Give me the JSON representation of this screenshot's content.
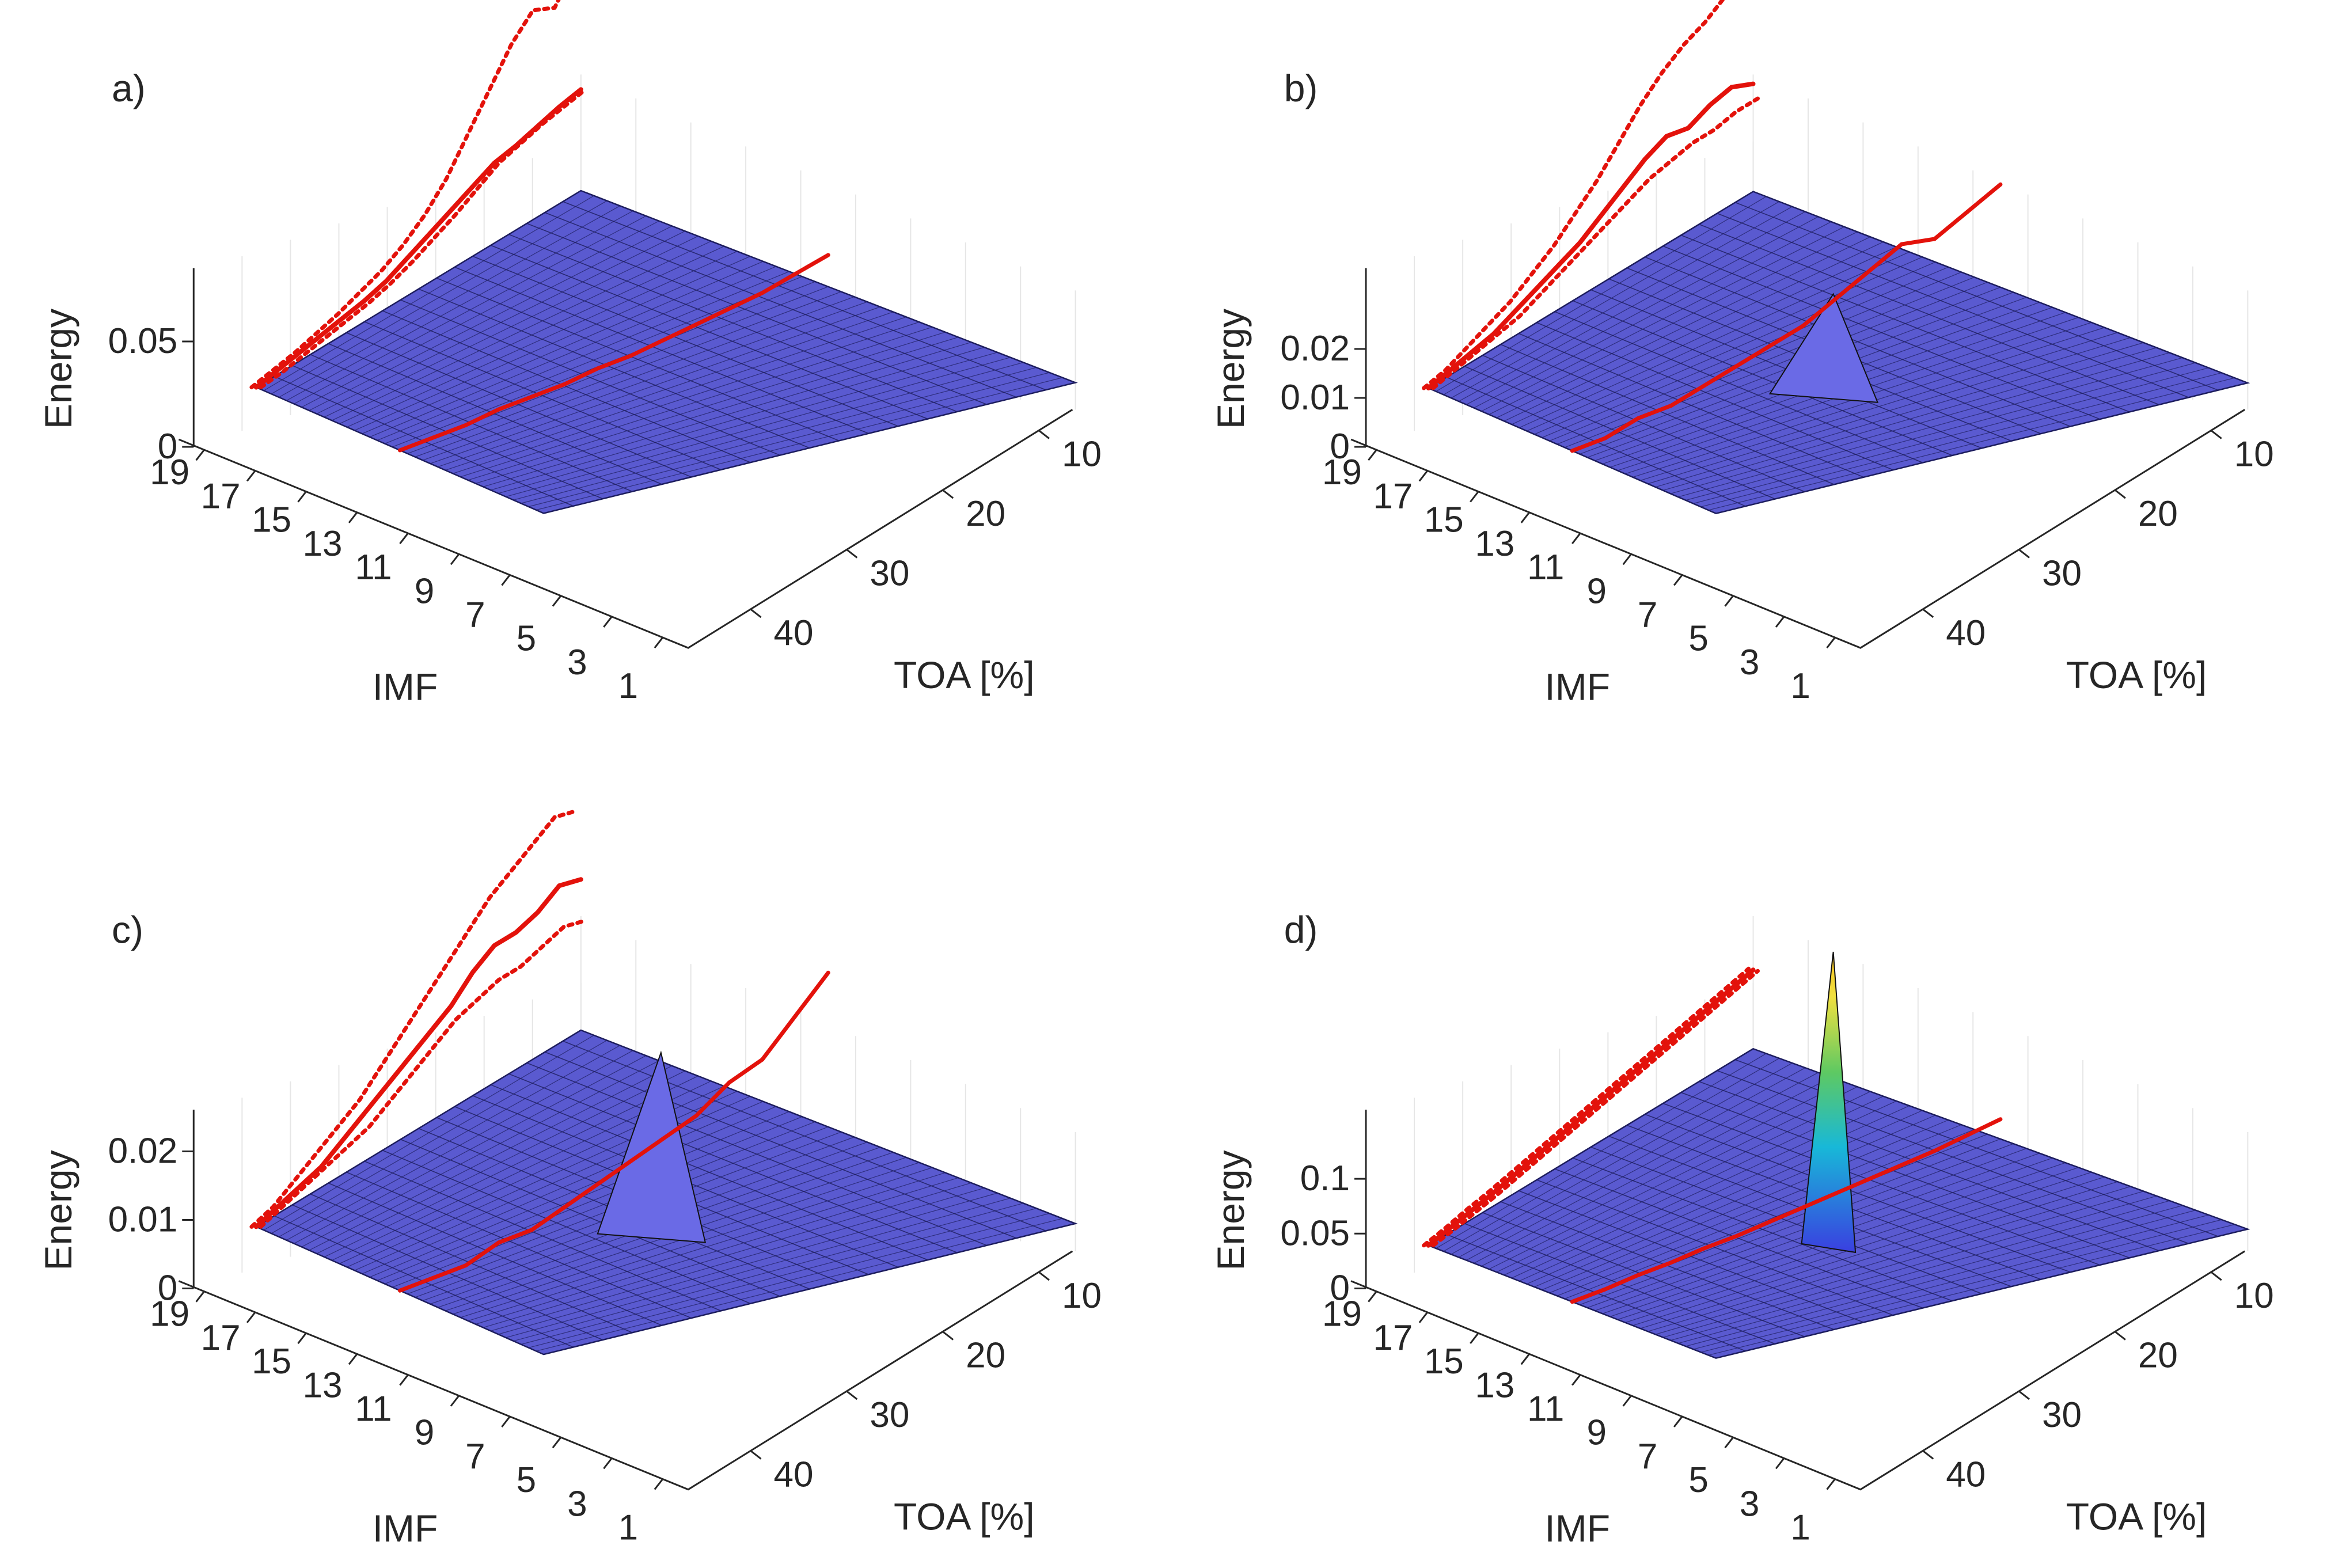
{
  "chart_data": [
    {
      "type": "surface",
      "panel_label": "a)",
      "xlabel": "IMF",
      "ylabel": "TOA [%]",
      "zlabel": "Energy",
      "imf_ticks": [
        "19",
        "17",
        "15",
        "13",
        "11",
        "9",
        "7",
        "5",
        "3",
        "1"
      ],
      "toa_ticks": [
        "10",
        "20",
        "30",
        "40"
      ],
      "z_ticks": [
        "0",
        "0.05"
      ],
      "z_tick_values": [
        0,
        0.05
      ],
      "zlim": [
        0,
        0.065
      ],
      "surface_level": 0.012,
      "peak": null,
      "lines": [
        {
          "style": "solid",
          "values": [
            0.012,
            0.014,
            0.016,
            0.018,
            0.02,
            0.022,
            0.025,
            0.03,
            0.035,
            0.04,
            0.045,
            0.05,
            0.052,
            0.055,
            0.058,
            0.06
          ]
        },
        {
          "style": "dotted",
          "values": [
            0.012,
            0.014,
            0.016,
            0.019,
            0.022,
            0.026,
            0.03,
            0.036,
            0.044,
            0.055,
            0.07,
            0.085,
            0.1,
            0.11,
            0.105,
            0.12
          ]
        },
        {
          "style": "dotted",
          "values": [
            0.012,
            0.013,
            0.015,
            0.017,
            0.019,
            0.021,
            0.024,
            0.028,
            0.033,
            0.038,
            0.044,
            0.05,
            0.053,
            0.056,
            0.058,
            0.06
          ]
        }
      ],
      "ridge_values": [
        0.012,
        0.012,
        0.012,
        0.013,
        0.013,
        0.013,
        0.014,
        0.014,
        0.015,
        0.016,
        0.017,
        0.018,
        0.02,
        0.022
      ]
    },
    {
      "type": "surface",
      "panel_label": "b)",
      "xlabel": "IMF",
      "ylabel": "TOA [%]",
      "zlabel": "Energy",
      "imf_ticks": [
        "19",
        "17",
        "15",
        "13",
        "11",
        "9",
        "7",
        "5",
        "3",
        "1"
      ],
      "toa_ticks": [
        "10",
        "20",
        "30",
        "40"
      ],
      "z_ticks": [
        "0",
        "0.01",
        "0.02"
      ],
      "z_tick_values": [
        0,
        0.01,
        0.02
      ],
      "zlim": [
        0,
        0.028
      ],
      "surface_level": 0.005,
      "peak": {
        "toa": 20,
        "imf": 6,
        "value": 0.012
      },
      "lines": [
        {
          "style": "solid",
          "values": [
            0.005,
            0.006,
            0.007,
            0.008,
            0.01,
            0.012,
            0.014,
            0.016,
            0.019,
            0.022,
            0.025,
            0.027,
            0.026,
            0.028,
            0.029,
            0.027
          ]
        },
        {
          "style": "dotted",
          "values": [
            0.005,
            0.006,
            0.008,
            0.01,
            0.012,
            0.015,
            0.018,
            0.022,
            0.026,
            0.031,
            0.036,
            0.04,
            0.043,
            0.045,
            0.048,
            0.05
          ]
        },
        {
          "style": "dotted",
          "values": [
            0.005,
            0.006,
            0.007,
            0.008,
            0.009,
            0.011,
            0.013,
            0.015,
            0.017,
            0.019,
            0.021,
            0.022,
            0.023,
            0.023,
            0.024,
            0.024
          ]
        }
      ],
      "ridge_values": [
        0.005,
        0.005,
        0.006,
        0.006,
        0.007,
        0.008,
        0.009,
        0.01,
        0.012,
        0.014,
        0.016,
        0.015,
        0.017,
        0.019
      ]
    },
    {
      "type": "surface",
      "panel_label": "c)",
      "xlabel": "IMF",
      "ylabel": "TOA [%]",
      "zlabel": "Energy",
      "imf_ticks": [
        "19",
        "17",
        "15",
        "13",
        "11",
        "9",
        "7",
        "5",
        "3",
        "1"
      ],
      "toa_ticks": [
        "10",
        "20",
        "30",
        "40"
      ],
      "z_ticks": [
        "0",
        "0.01",
        "0.02"
      ],
      "z_tick_values": [
        0,
        0.01,
        0.02
      ],
      "zlim": [
        0,
        0.02
      ],
      "surface_level": 0.004,
      "peak": {
        "toa": 24,
        "imf": 6,
        "value": 0.016
      },
      "lines": [
        {
          "style": "solid",
          "values": [
            0.004,
            0.005,
            0.006,
            0.007,
            0.009,
            0.011,
            0.013,
            0.015,
            0.017,
            0.019,
            0.022,
            0.024,
            0.024,
            0.025,
            0.027,
            0.026
          ]
        },
        {
          "style": "dotted",
          "values": [
            0.004,
            0.005,
            0.007,
            0.009,
            0.011,
            0.013,
            0.016,
            0.019,
            0.022,
            0.025,
            0.028,
            0.031,
            0.033,
            0.035,
            0.037,
            0.036
          ]
        },
        {
          "style": "dotted",
          "values": [
            0.004,
            0.005,
            0.006,
            0.007,
            0.008,
            0.009,
            0.011,
            0.013,
            0.015,
            0.017,
            0.018,
            0.019,
            0.019,
            0.02,
            0.021,
            0.02
          ]
        }
      ],
      "ridge_values": [
        0.004,
        0.004,
        0.004,
        0.005,
        0.005,
        0.006,
        0.007,
        0.008,
        0.009,
        0.01,
        0.012,
        0.013,
        0.016,
        0.019
      ]
    },
    {
      "type": "surface",
      "panel_label": "d)",
      "xlabel": "IMF",
      "ylabel": "TOA [%]",
      "zlabel": "Energy",
      "imf_ticks": [
        "19",
        "17",
        "15",
        "13",
        "11",
        "9",
        "7",
        "5",
        "3",
        "1"
      ],
      "toa_ticks": [
        "10",
        "20",
        "30",
        "40"
      ],
      "z_ticks": [
        "0",
        "0.05",
        "0.1"
      ],
      "z_tick_values": [
        0,
        0.05,
        0.1
      ],
      "zlim": [
        0,
        0.125
      ],
      "surface_level": 0.008,
      "peak": {
        "toa": 20,
        "imf": 9,
        "value": 0.18
      },
      "lines": [
        {
          "style": "solid",
          "values": [
            0.008,
            0.012,
            0.016,
            0.02,
            0.025,
            0.03,
            0.035,
            0.04,
            0.045,
            0.05,
            0.055,
            0.06,
            0.065,
            0.07,
            0.075,
            0.08
          ]
        },
        {
          "style": "dotted",
          "values": [
            0.008,
            0.012,
            0.017,
            0.021,
            0.026,
            0.031,
            0.036,
            0.041,
            0.046,
            0.051,
            0.056,
            0.061,
            0.066,
            0.071,
            0.076,
            0.081
          ]
        },
        {
          "style": "dotted",
          "values": [
            0.008,
            0.011,
            0.015,
            0.019,
            0.024,
            0.029,
            0.034,
            0.039,
            0.044,
            0.049,
            0.054,
            0.059,
            0.064,
            0.069,
            0.074,
            0.079
          ]
        }
      ],
      "ridge_values": [
        0.008,
        0.008,
        0.009,
        0.009,
        0.01,
        0.01,
        0.011,
        0.012,
        0.013,
        0.014,
        0.015,
        0.016,
        0.018,
        0.02
      ]
    }
  ]
}
